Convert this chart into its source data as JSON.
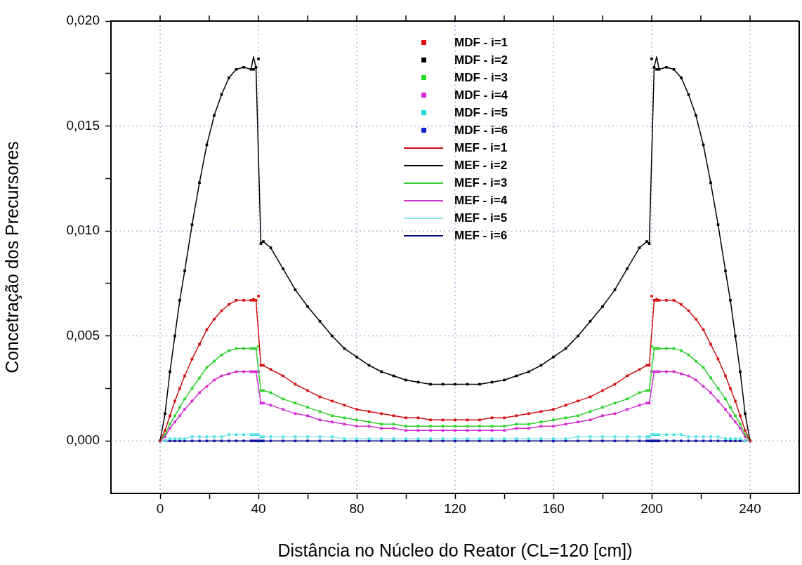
{
  "chart_data": {
    "type": "line",
    "xlabel": "Distância no Núcleo do Reator (CL=120 [cm])",
    "ylabel": "Concetração dos Precursores",
    "x": [
      0,
      2,
      4,
      6,
      8,
      10,
      13,
      16,
      19,
      22,
      25,
      28,
      31,
      34,
      37,
      38,
      39,
      40,
      41,
      42,
      45,
      50,
      55,
      60,
      65,
      70,
      75,
      80,
      85,
      90,
      95,
      100,
      105,
      110,
      115,
      120,
      125,
      130,
      135,
      140,
      145,
      150,
      155,
      160,
      165,
      170,
      175,
      180,
      185,
      190,
      195,
      198,
      199,
      200,
      201,
      202,
      203,
      206,
      209,
      212,
      215,
      218,
      221,
      224,
      227,
      230,
      232,
      234,
      236,
      238,
      240
    ],
    "xlim": [
      -20,
      260
    ],
    "xticks": [
      0,
      {
        "value": 20,
        "label": null
      },
      40,
      {
        "value": 60,
        "label": null
      },
      80,
      {
        "value": 100,
        "label": null
      },
      120,
      {
        "value": 140,
        "label": null
      },
      160,
      {
        "value": 180,
        "label": null
      },
      200,
      {
        "value": 220,
        "label": null
      },
      240
    ],
    "ylim": [
      -0.0025,
      0.02
    ],
    "yticks": [
      {
        "value": 0,
        "label": "0,000"
      },
      {
        "value": 0.0025,
        "label": null
      },
      {
        "value": 0.005,
        "label": "0,005"
      },
      {
        "value": 0.0075,
        "label": null
      },
      {
        "value": 0.01,
        "label": "0,010"
      },
      {
        "value": 0.0125,
        "label": null
      },
      {
        "value": 0.015,
        "label": "0,015"
      },
      {
        "value": 0.0175,
        "label": null
      },
      {
        "value": 0.02,
        "label": "0,020"
      }
    ],
    "grid": true,
    "legend": "top",
    "series": [
      {
        "name": "MDF - i=1",
        "type": "scatter",
        "marker": "square",
        "color": "#e01010",
        "values": [
          0,
          0.0005,
          0.0012,
          0.0019,
          0.0025,
          0.0031,
          0.0039,
          0.0046,
          0.0053,
          0.0058,
          0.0062,
          0.0065,
          0.0067,
          0.0067,
          0.0067,
          0.0067,
          0.0067,
          0.0069,
          0.0036,
          0.0036,
          0.0034,
          0.0031,
          0.0027,
          0.0024,
          0.0021,
          0.0019,
          0.0017,
          0.0015,
          0.0014,
          0.0013,
          0.0012,
          0.0011,
          0.0011,
          0.001,
          0.001,
          0.001,
          0.001,
          0.001,
          0.0011,
          0.0011,
          0.0012,
          0.0013,
          0.0014,
          0.0015,
          0.0017,
          0.0019,
          0.0021,
          0.0024,
          0.0027,
          0.0031,
          0.0034,
          0.0036,
          0.0036,
          0.0069,
          0.0067,
          0.0067,
          0.0067,
          0.0067,
          0.0067,
          0.0065,
          0.0062,
          0.0058,
          0.0053,
          0.0046,
          0.0039,
          0.0031,
          0.0025,
          0.0019,
          0.0012,
          0.0005,
          0
        ]
      },
      {
        "name": "MDF - i=2",
        "type": "scatter",
        "marker": "square",
        "color": "#000000",
        "values": [
          0,
          0.0013,
          0.0033,
          0.005,
          0.0067,
          0.0081,
          0.0103,
          0.0123,
          0.0141,
          0.0155,
          0.0165,
          0.0173,
          0.0177,
          0.0178,
          0.0177,
          0.0177,
          0.0178,
          0.0182,
          0.0094,
          0.0095,
          0.0092,
          0.0082,
          0.0072,
          0.0064,
          0.0057,
          0.005,
          0.0044,
          0.004,
          0.0036,
          0.0033,
          0.0031,
          0.0029,
          0.0028,
          0.0027,
          0.0027,
          0.0027,
          0.0027,
          0.0027,
          0.0028,
          0.0029,
          0.0031,
          0.0033,
          0.0036,
          0.004,
          0.0044,
          0.005,
          0.0057,
          0.0064,
          0.0072,
          0.0082,
          0.0092,
          0.0095,
          0.0094,
          0.0182,
          0.0178,
          0.0177,
          0.0177,
          0.0178,
          0.0177,
          0.0173,
          0.0165,
          0.0155,
          0.0141,
          0.0123,
          0.0103,
          0.0081,
          0.0067,
          0.005,
          0.0033,
          0.0013,
          0
        ]
      },
      {
        "name": "MDF - i=3",
        "type": "scatter",
        "marker": "square",
        "color": "#22dd22",
        "values": [
          0,
          0.0003,
          0.0008,
          0.0012,
          0.0016,
          0.002,
          0.0025,
          0.003,
          0.0035,
          0.0038,
          0.0041,
          0.0043,
          0.0044,
          0.0044,
          0.0044,
          0.0044,
          0.0044,
          0.0045,
          0.0024,
          0.0024,
          0.0023,
          0.002,
          0.0018,
          0.0016,
          0.0014,
          0.0012,
          0.0011,
          0.001,
          0.0009,
          0.0008,
          0.0008,
          0.0007,
          0.0007,
          0.0007,
          0.0007,
          0.0007,
          0.0007,
          0.0007,
          0.0007,
          0.0007,
          0.0008,
          0.0008,
          0.0009,
          0.001,
          0.0011,
          0.0012,
          0.0014,
          0.0016,
          0.0018,
          0.002,
          0.0023,
          0.0024,
          0.0024,
          0.0045,
          0.0044,
          0.0044,
          0.0044,
          0.0044,
          0.0044,
          0.0043,
          0.0041,
          0.0038,
          0.0035,
          0.003,
          0.0025,
          0.002,
          0.0016,
          0.0012,
          0.0008,
          0.0003,
          0
        ]
      },
      {
        "name": "MDF - i=4",
        "type": "scatter",
        "marker": "square",
        "color": "#dd22dd",
        "values": [
          0,
          0.0002,
          0.0006,
          0.0009,
          0.0012,
          0.0015,
          0.0019,
          0.0023,
          0.0026,
          0.0029,
          0.0031,
          0.0032,
          0.0033,
          0.0033,
          0.0033,
          0.0033,
          0.0033,
          0.0033,
          0.0018,
          0.0018,
          0.0017,
          0.0015,
          0.0013,
          0.0012,
          0.001,
          0.0009,
          0.0008,
          0.0007,
          0.0007,
          0.0006,
          0.0006,
          0.0005,
          0.0005,
          0.0005,
          0.0005,
          0.0005,
          0.0005,
          0.0005,
          0.0005,
          0.0005,
          0.0006,
          0.0006,
          0.0007,
          0.0007,
          0.0008,
          0.0009,
          0.001,
          0.0012,
          0.0013,
          0.0015,
          0.0017,
          0.0018,
          0.0018,
          0.0033,
          0.0033,
          0.0033,
          0.0033,
          0.0033,
          0.0033,
          0.0032,
          0.0031,
          0.0029,
          0.0026,
          0.0023,
          0.0019,
          0.0015,
          0.0012,
          0.0009,
          0.0006,
          0.0002,
          0
        ]
      },
      {
        "name": "MDF - i=5",
        "type": "scatter",
        "marker": "square",
        "color": "#22dddd",
        "values": [
          0,
          0,
          0.0001,
          0.0001,
          0.0001,
          0.0001,
          0.0002,
          0.0002,
          0.0002,
          0.0002,
          0.0002,
          0.0003,
          0.0003,
          0.0003,
          0.0003,
          0.0003,
          0.0003,
          0.0003,
          0.0002,
          0.0002,
          0.0002,
          0.0002,
          0.0002,
          0.0002,
          0.0002,
          0.0002,
          0.0001,
          0.0001,
          0.0001,
          0.0001,
          0.0001,
          0.0001,
          0.0001,
          0.0001,
          0.0001,
          0.0001,
          0.0001,
          0.0001,
          0.0001,
          0.0001,
          0.0001,
          0.0001,
          0.0001,
          0.0001,
          0.0001,
          0.0002,
          0.0002,
          0.0002,
          0.0002,
          0.0002,
          0.0002,
          0.0002,
          0.0002,
          0.0003,
          0.0003,
          0.0003,
          0.0003,
          0.0003,
          0.0003,
          0.0003,
          0.0002,
          0.0002,
          0.0002,
          0.0002,
          0.0002,
          0.0001,
          0.0001,
          0.0001,
          0.0001,
          0,
          0
        ]
      },
      {
        "name": "MDF - i=6",
        "type": "scatter",
        "marker": "square",
        "color": "#1020cc",
        "values": [
          0,
          0,
          0,
          0,
          0,
          0,
          0,
          0,
          0,
          0,
          0,
          0,
          0,
          0,
          0,
          0,
          0,
          0,
          0,
          0,
          0,
          0,
          0,
          0,
          0,
          0,
          0,
          0,
          0,
          0,
          0,
          0,
          0,
          0,
          0,
          0,
          0,
          0,
          0,
          0,
          0,
          0,
          0,
          0,
          0,
          0,
          0,
          0,
          0,
          0,
          0,
          0,
          0,
          0,
          0,
          0,
          0,
          0,
          0,
          0,
          0,
          0,
          0,
          0,
          0,
          0,
          0,
          0,
          0,
          0,
          0
        ]
      },
      {
        "name": "MEF - i=1",
        "marker": "none",
        "color": "#cc1111",
        "values": [
          0,
          0.0005,
          0.0012,
          0.0019,
          0.0025,
          0.0031,
          0.0039,
          0.0046,
          0.0053,
          0.0058,
          0.0062,
          0.0065,
          0.0067,
          0.0067,
          0.0067,
          0.0068,
          0.0067,
          null,
          0.0036,
          0.0036,
          0.0034,
          0.0031,
          0.0027,
          0.0024,
          0.0021,
          0.0019,
          0.0017,
          0.0015,
          0.0014,
          0.0013,
          0.0012,
          0.0011,
          0.0011,
          0.001,
          0.001,
          0.001,
          0.001,
          0.001,
          0.0011,
          0.0011,
          0.0012,
          0.0013,
          0.0014,
          0.0015,
          0.0017,
          0.0019,
          0.0021,
          0.0024,
          0.0027,
          0.0031,
          0.0034,
          0.0036,
          0.0036,
          null,
          0.0067,
          0.0068,
          0.0067,
          0.0067,
          0.0067,
          0.0065,
          0.0062,
          0.0058,
          0.0053,
          0.0046,
          0.0039,
          0.0031,
          0.0025,
          0.0019,
          0.0012,
          0.0005,
          0
        ]
      },
      {
        "name": "MEF - i=2",
        "marker": "none",
        "color": "#000000",
        "values": [
          0,
          0.0013,
          0.0033,
          0.005,
          0.0067,
          0.0081,
          0.0103,
          0.0123,
          0.0141,
          0.0155,
          0.0165,
          0.0173,
          0.0177,
          0.0178,
          0.0177,
          0.0183,
          0.0178,
          null,
          0.0094,
          0.0095,
          0.0092,
          0.0082,
          0.0072,
          0.0064,
          0.0057,
          0.005,
          0.0044,
          0.004,
          0.0036,
          0.0033,
          0.0031,
          0.0029,
          0.0028,
          0.0027,
          0.0027,
          0.0027,
          0.0027,
          0.0027,
          0.0028,
          0.0029,
          0.0031,
          0.0033,
          0.0036,
          0.004,
          0.0044,
          0.005,
          0.0057,
          0.0064,
          0.0072,
          0.0082,
          0.0092,
          0.0095,
          0.0094,
          null,
          0.0178,
          0.0183,
          0.0177,
          0.0178,
          0.0177,
          0.0173,
          0.0165,
          0.0155,
          0.0141,
          0.0123,
          0.0103,
          0.0081,
          0.0067,
          0.005,
          0.0033,
          0.0013,
          0
        ]
      },
      {
        "name": "MEF - i=3",
        "marker": "none",
        "color": "#33cc33",
        "values": [
          0,
          0.0003,
          0.0008,
          0.0012,
          0.0016,
          0.002,
          0.0025,
          0.003,
          0.0035,
          0.0038,
          0.0041,
          0.0043,
          0.0044,
          0.0044,
          0.0044,
          0.0044,
          0.0044,
          null,
          0.0024,
          0.0024,
          0.0023,
          0.002,
          0.0018,
          0.0016,
          0.0014,
          0.0012,
          0.0011,
          0.001,
          0.0009,
          0.0008,
          0.0008,
          0.0007,
          0.0007,
          0.0007,
          0.0007,
          0.0007,
          0.0007,
          0.0007,
          0.0007,
          0.0007,
          0.0008,
          0.0008,
          0.0009,
          0.001,
          0.0011,
          0.0012,
          0.0014,
          0.0016,
          0.0018,
          0.002,
          0.0023,
          0.0024,
          0.0024,
          null,
          0.0044,
          0.0044,
          0.0044,
          0.0044,
          0.0044,
          0.0043,
          0.0041,
          0.0038,
          0.0035,
          0.003,
          0.0025,
          0.002,
          0.0016,
          0.0012,
          0.0008,
          0.0003,
          0
        ]
      },
      {
        "name": "MEF - i=4",
        "marker": "none",
        "color": "#cc33cc",
        "values": [
          0,
          0.0002,
          0.0006,
          0.0009,
          0.0012,
          0.0015,
          0.0019,
          0.0023,
          0.0026,
          0.0029,
          0.0031,
          0.0032,
          0.0033,
          0.0033,
          0.0033,
          0.0033,
          0.0033,
          null,
          0.0018,
          0.0018,
          0.0017,
          0.0015,
          0.0013,
          0.0012,
          0.001,
          0.0009,
          0.0008,
          0.0007,
          0.0007,
          0.0006,
          0.0006,
          0.0005,
          0.0005,
          0.0005,
          0.0005,
          0.0005,
          0.0005,
          0.0005,
          0.0005,
          0.0005,
          0.0006,
          0.0006,
          0.0007,
          0.0007,
          0.0008,
          0.0009,
          0.001,
          0.0012,
          0.0013,
          0.0015,
          0.0017,
          0.0018,
          0.0018,
          null,
          0.0033,
          0.0033,
          0.0033,
          0.0033,
          0.0033,
          0.0032,
          0.0031,
          0.0029,
          0.0026,
          0.0023,
          0.0019,
          0.0015,
          0.0012,
          0.0009,
          0.0006,
          0.0002,
          0
        ]
      },
      {
        "name": "MEF - i=5",
        "marker": "none",
        "color": "#88e8ee",
        "values": [
          0,
          0,
          0.0001,
          0.0001,
          0.0001,
          0.0001,
          0.0002,
          0.0002,
          0.0002,
          0.0002,
          0.0002,
          0.0003,
          0.0003,
          0.0003,
          0.0003,
          0.0003,
          0.0003,
          0.0003,
          0.0002,
          0.0002,
          0.0002,
          0.0002,
          0.0002,
          0.0002,
          0.0002,
          0.0002,
          0.0001,
          0.0001,
          0.0001,
          0.0001,
          0.0001,
          0.0001,
          0.0001,
          0.0001,
          0.0001,
          0.0001,
          0.0001,
          0.0001,
          0.0001,
          0.0001,
          0.0001,
          0.0001,
          0.0001,
          0.0001,
          0.0001,
          0.0002,
          0.0002,
          0.0002,
          0.0002,
          0.0002,
          0.0002,
          0.0002,
          0.0002,
          0.0003,
          0.0003,
          0.0003,
          0.0003,
          0.0003,
          0.0003,
          0.0003,
          0.0002,
          0.0002,
          0.0002,
          0.0002,
          0.0002,
          0.0001,
          0.0001,
          0.0001,
          0.0001,
          0,
          0
        ]
      },
      {
        "name": "MEF - i=6",
        "marker": "none",
        "color": "#101080",
        "values": [
          0,
          0,
          0,
          0,
          0,
          0,
          0,
          0,
          0,
          0,
          0,
          0,
          0,
          0,
          0,
          0,
          0,
          0,
          0,
          0,
          0,
          0,
          0,
          0,
          0,
          0,
          0,
          0,
          0,
          0,
          0,
          0,
          0,
          0,
          0,
          0,
          0,
          0,
          0,
          0,
          0,
          0,
          0,
          0,
          0,
          0,
          0,
          0,
          0,
          0,
          0,
          0,
          0,
          0,
          0,
          0,
          0,
          0,
          0,
          0,
          0,
          0,
          0,
          0,
          0,
          0,
          0,
          0,
          0,
          0,
          0
        ]
      }
    ]
  }
}
